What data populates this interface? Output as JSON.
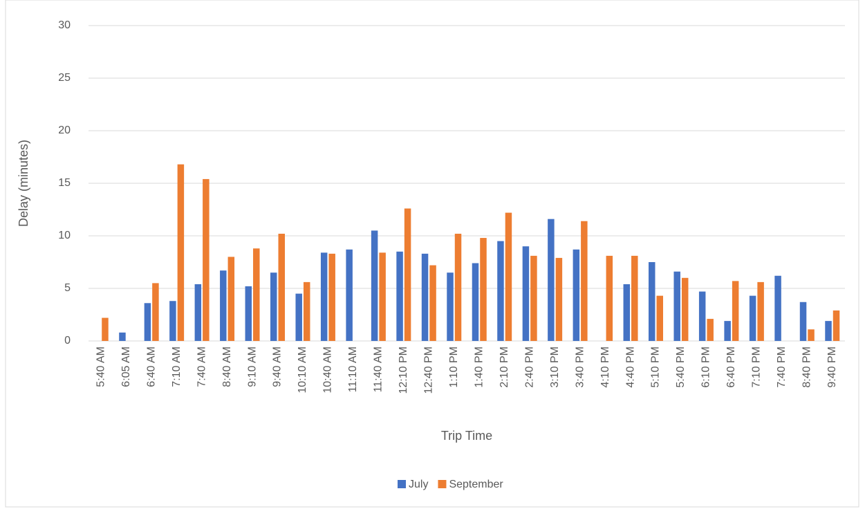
{
  "chart_data": {
    "type": "bar",
    "categories": [
      "5:40 AM",
      "6:05 AM",
      "6:40 AM",
      "7:10 AM",
      "7:40 AM",
      "8:40 AM",
      "9:10 AM",
      "9:40 AM",
      "10:10 AM",
      "10:40 AM",
      "11:10 AM",
      "11:40 AM",
      "12:10 PM",
      "12:40 PM",
      "1:10 PM",
      "1:40 PM",
      "2:10 PM",
      "2:40 PM",
      "3:10 PM",
      "3:40 PM",
      "4:10 PM",
      "4:40 PM",
      "5:10 PM",
      "5:40 PM",
      "6:10 PM",
      "6:40 PM",
      "7:10 PM",
      "7:40 PM",
      "8:40 PM",
      "9:40 PM"
    ],
    "series": [
      {
        "name": "July",
        "color": "#4472c4",
        "values": [
          null,
          0.8,
          3.6,
          3.8,
          5.4,
          6.7,
          5.2,
          6.5,
          4.5,
          8.4,
          8.7,
          10.5,
          8.5,
          8.3,
          6.5,
          7.4,
          9.5,
          9.0,
          11.6,
          8.7,
          null,
          5.4,
          7.5,
          6.6,
          4.7,
          1.9,
          4.3,
          6.2,
          3.7,
          1.9
        ]
      },
      {
        "name": "September",
        "color": "#ed7d31",
        "values": [
          2.2,
          null,
          5.5,
          16.8,
          15.4,
          8.0,
          8.8,
          10.2,
          5.6,
          8.3,
          null,
          8.4,
          12.6,
          7.2,
          10.2,
          9.8,
          12.2,
          8.1,
          7.9,
          11.4,
          8.1,
          8.1,
          4.3,
          6.0,
          2.1,
          5.7,
          5.6,
          null,
          1.1,
          2.9
        ]
      }
    ],
    "x_label": "Trip Time",
    "y_label": "Delay (minutes)",
    "ylim": [
      0,
      30
    ],
    "yticks": [
      0,
      5,
      10,
      15,
      20,
      25,
      30
    ],
    "grid": true,
    "legend": "bottom"
  }
}
